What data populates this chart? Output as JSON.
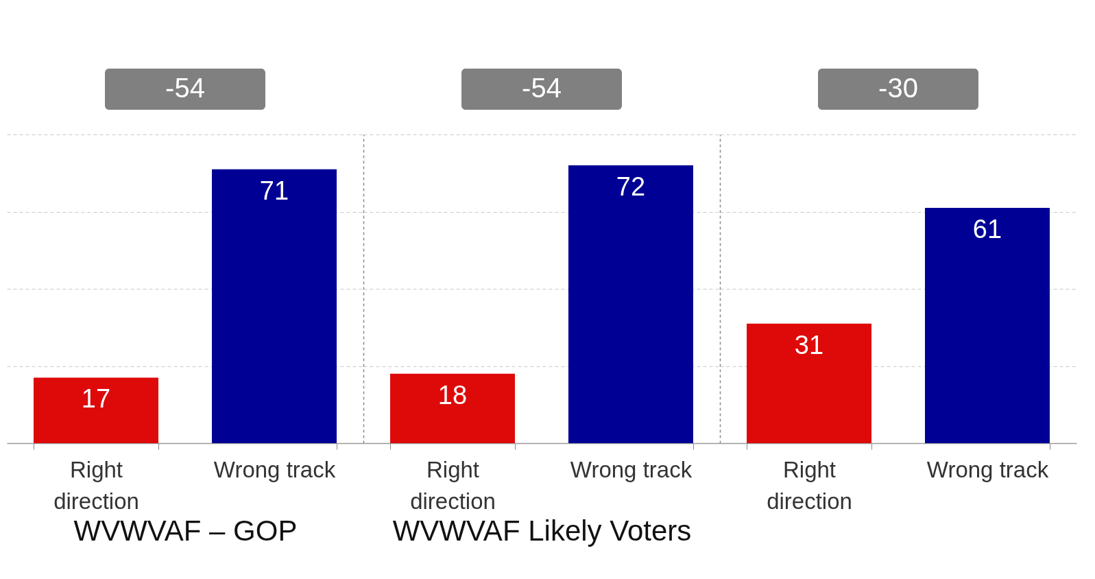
{
  "chart_data": [
    {
      "type": "bar",
      "categories": [
        "Right direction",
        "Wrong track"
      ],
      "values": [
        17,
        71
      ],
      "colors": [
        "#de0a0a",
        "#000094"
      ],
      "xlabel": "WVWVAF – GOP",
      "annotations": [
        "-54"
      ],
      "ylim": [
        0,
        80
      ],
      "yticks": [
        0,
        20,
        40,
        60,
        80
      ],
      "grid": "y",
      "data_labels": true,
      "tick_labels": "x"
    },
    {
      "type": "bar",
      "categories": [
        "Right direction",
        "Wrong track"
      ],
      "values": [
        18,
        72
      ],
      "colors": [
        "#de0a0a",
        "#000094"
      ],
      "xlabel": "WVWVAF Likely Voters",
      "annotations": [
        "-54"
      ],
      "ylim": [
        0,
        80
      ],
      "yticks": [
        0,
        20,
        40,
        60,
        80
      ],
      "grid": "y",
      "data_labels": true,
      "tick_labels": "x"
    },
    {
      "type": "bar",
      "categories": [
        "Right direction",
        "Wrong track"
      ],
      "values": [
        31,
        61
      ],
      "colors": [
        "#de0a0a",
        "#000094"
      ],
      "annotations": [
        "-30"
      ],
      "ylim": [
        0,
        80
      ],
      "yticks": [
        0,
        20,
        40,
        60,
        80
      ],
      "grid": "y",
      "data_labels": true,
      "tick_labels": "x"
    }
  ]
}
